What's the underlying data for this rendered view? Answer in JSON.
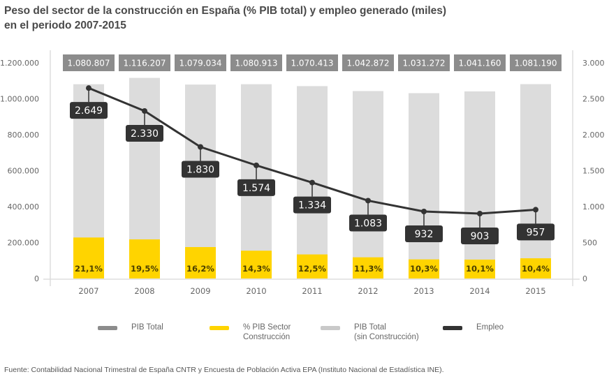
{
  "title_lines": [
    "Peso del sector de la construcción en España (% PIB total) y empleo generado (miles)",
    "en el periodo 2007-2015"
  ],
  "source": "Fuente: Contabilidad Nacional Trimestral de España CNTR y Encuesta de Población Activa EPA (Instituto Nacional de Estadística INE).",
  "colors": {
    "pib_total": "#8c8c8c",
    "pib_construccion": "#ffd400",
    "pib_sin_construccion": "#dcdcdc",
    "empleo": "#333333",
    "axis_text": "#666666",
    "pct_text": "#4a3f00"
  },
  "legend": [
    {
      "key": "pib_total",
      "label": "PIB Total"
    },
    {
      "key": "pib_construccion",
      "label": "% PIB Sector\nConstrucción"
    },
    {
      "key": "pib_sin_construccion",
      "label": "PIB Total\n(sin Construcción)"
    },
    {
      "key": "empleo",
      "label": "Empleo"
    }
  ],
  "chart_data": {
    "type": "bar",
    "title": "Peso del sector de la construcción en España (% PIB total) y empleo generado (miles) en el periodo 2007-2015",
    "categories": [
      "2007",
      "2008",
      "2009",
      "2010",
      "2011",
      "2012",
      "2013",
      "2014",
      "2015"
    ],
    "series": [
      {
        "name": "PIB Total",
        "type": "bar",
        "axis": "left",
        "values": [
          1080807,
          1116207,
          1079034,
          1080913,
          1070413,
          1042872,
          1031272,
          1041160,
          1081190
        ],
        "labels": [
          "1.080.807",
          "1.116.207",
          "1.079.034",
          "1.080.913",
          "1.070.413",
          "1.042.872",
          "1.031.272",
          "1.041.160",
          "1.081.190"
        ]
      },
      {
        "name": "% PIB Sector Construcción",
        "type": "bar-stacked",
        "axis": "left",
        "percent_values": [
          21.1,
          19.5,
          16.2,
          14.3,
          12.5,
          11.3,
          10.3,
          10.1,
          10.4
        ],
        "labels": [
          "21,1%",
          "19,5%",
          "16,2%",
          "14,3%",
          "12,5%",
          "11,3%",
          "10,3%",
          "10,1%",
          "10,4%"
        ]
      },
      {
        "name": "PIB Total (sin Construcción)",
        "type": "bar-stacked",
        "axis": "left"
      },
      {
        "name": "Empleo",
        "type": "line",
        "axis": "right",
        "values": [
          2649,
          2330,
          1830,
          1574,
          1334,
          1083,
          932,
          903,
          957
        ],
        "labels": [
          "2.649",
          "2.330",
          "1.830",
          "1.574",
          "1.334",
          "1.083",
          "932",
          "903",
          "957"
        ]
      }
    ],
    "left_axis": {
      "ylim": [
        0,
        1200000
      ],
      "ticks": [
        0,
        200000,
        400000,
        600000,
        800000,
        1000000,
        1200000
      ],
      "tick_labels": [
        "0",
        "200.000",
        "400.000",
        "600.000",
        "800.000",
        "1.000.000",
        "1.200.000"
      ]
    },
    "right_axis": {
      "ylim": [
        0,
        3000
      ],
      "ticks": [
        0,
        500,
        1000,
        1500,
        2000,
        2500,
        3000
      ],
      "tick_labels": [
        "0",
        "500",
        "1.000",
        "1.500",
        "2.000",
        "2.500",
        "3.000"
      ]
    },
    "xlabel": "",
    "ylabel": "",
    "grid": false,
    "legend_position": "bottom"
  }
}
